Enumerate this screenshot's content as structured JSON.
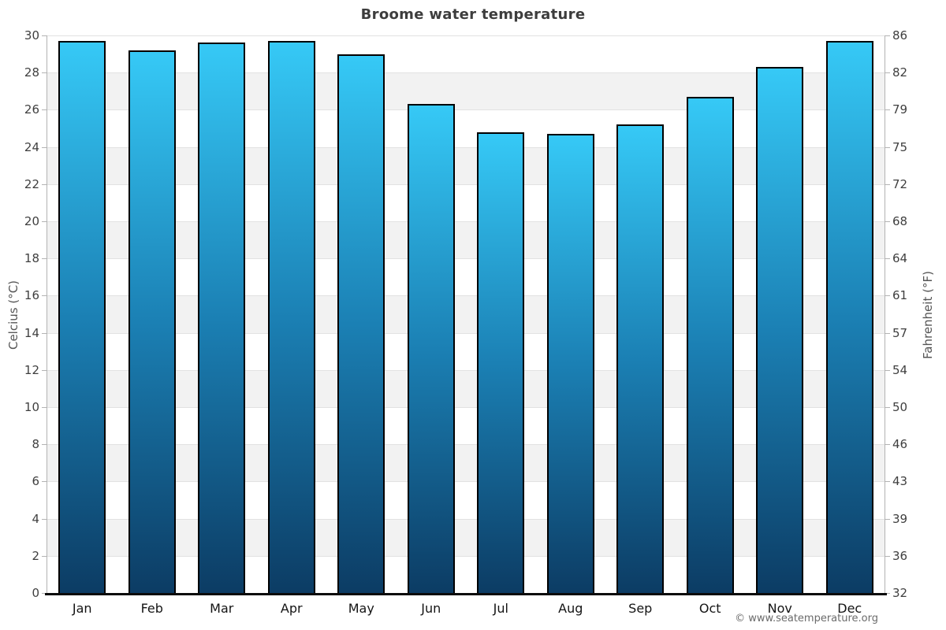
{
  "title": "Broome water temperature",
  "footer": "© www.seatemperature.org",
  "y_axis_left": {
    "label": "Celcius (°C)"
  },
  "y_axis_right": {
    "label": "Fahrenheit (°F)"
  },
  "chart_data": {
    "type": "bar",
    "title": "Broome water temperature",
    "categories": [
      "Jan",
      "Feb",
      "Mar",
      "Apr",
      "May",
      "Jun",
      "Jul",
      "Aug",
      "Sep",
      "Oct",
      "Nov",
      "Dec"
    ],
    "values": [
      29.7,
      29.2,
      29.6,
      29.7,
      29.0,
      26.3,
      24.8,
      24.7,
      25.2,
      26.7,
      28.3,
      29.7
    ],
    "xlabel": "",
    "ylabel_left": "Celcius (°C)",
    "ylabel_right": "Fahrenheit (°F)",
    "ylim": [
      0,
      30
    ],
    "celsius_ticks": [
      30,
      28,
      26,
      24,
      22,
      20,
      18,
      16,
      14,
      12,
      10,
      8,
      6,
      4,
      2,
      0
    ],
    "fahrenheit_ticks": [
      86,
      82,
      79,
      75,
      72,
      68,
      64,
      61,
      57,
      54,
      50,
      46,
      43,
      39,
      36,
      32
    ],
    "grid": "horizontal alternating bands every 2°C",
    "legend": "none"
  },
  "colors": {
    "bar_top": "#36c9f6",
    "bar_mid": "#1b80b4",
    "bar_bottom": "#0c3c64",
    "bar_border": "#000000",
    "band_gray": "#f2f2f2",
    "band_white": "#ffffff",
    "gridline": "#e2e2e2",
    "axis_line": "#b3b3b3",
    "baseline": "#0b0b0b",
    "title_text": "#3d3d3d",
    "tick_text": "#3f3f3f",
    "axis_label_text": "#555555",
    "footer_text": "#6b6b6b"
  }
}
